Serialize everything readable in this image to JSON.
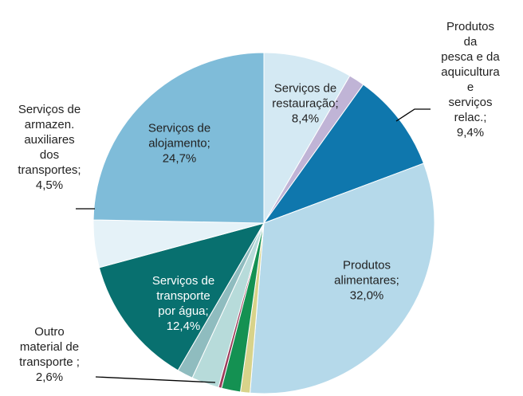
{
  "chart_data": {
    "type": "pie",
    "categories": [
      "Serviços de\nrestauração;",
      null,
      "Produtos da\npesca e da\naquicultura e\nserviços\nrelac.;",
      "Produtos\nalimentares;",
      null,
      null,
      null,
      "Outro\nmaterial de\ntransporte ;",
      null,
      "Serviços de\ntransporte\npor água;",
      "Serviços de\narmazen.\nauxiliares\ndos\ntransportes;",
      "Serviços de\nalojamento;"
    ],
    "values": [
      8.4,
      1.5,
      9.4,
      32.0,
      0.9,
      1.8,
      0.3,
      2.6,
      1.5,
      12.4,
      4.5,
      24.7
    ],
    "value_labels": [
      "8,4%",
      null,
      "9,4%",
      "32,0%",
      null,
      null,
      null,
      "2,6%",
      null,
      "12,4%",
      "4,5%",
      "24,7%"
    ],
    "colors": [
      "#d4e9f3",
      "#c0b4d6",
      "#0f77ad",
      "#b5d9ea",
      "#d8d38a",
      "#149152",
      "#9b3b5a",
      "#b7dbda",
      "#8fbcbf",
      "#08706f",
      "#e5f2f8",
      "#7fbcd9"
    ]
  }
}
